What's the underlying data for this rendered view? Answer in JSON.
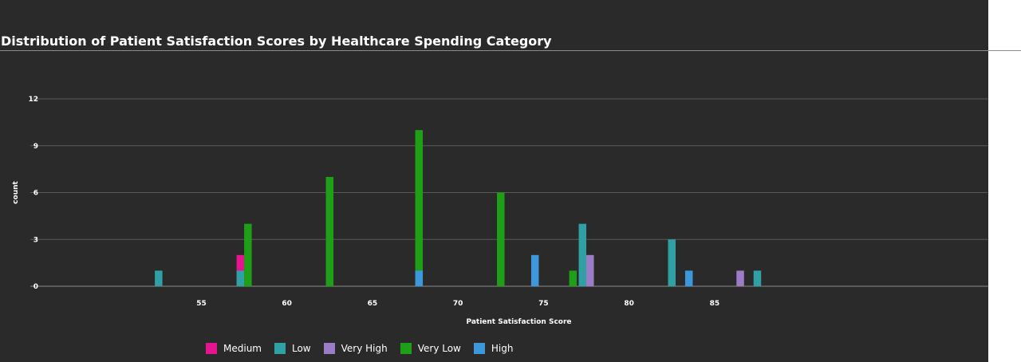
{
  "chart_data": {
    "type": "bar",
    "title": "Distribution of Patient Satisfaction Scores by Healthcare Spending Category",
    "xlabel": "Patient Satisfaction Score",
    "ylabel": "count",
    "xlim": [
      45,
      101
    ],
    "ylim": [
      0,
      12
    ],
    "x_ticks": [
      55,
      60,
      65,
      70,
      75,
      80,
      85
    ],
    "y_ticks": [
      0,
      3,
      6,
      9,
      12
    ],
    "grid": true,
    "legend_position": "bottom",
    "series": [
      {
        "name": "Medium",
        "color": "#e5158f",
        "points": [
          {
            "x": 57.5,
            "y": 2
          }
        ]
      },
      {
        "name": "Low",
        "color": "#30a0a5",
        "points": [
          {
            "x": 52.5,
            "y": 1
          },
          {
            "x": 57.5,
            "y": 1
          },
          {
            "x": 77.5,
            "y": 4
          },
          {
            "x": 82.5,
            "y": 3
          },
          {
            "x": 87.5,
            "y": 1
          }
        ]
      },
      {
        "name": "Very High",
        "color": "#9d7cc7",
        "points": [
          {
            "x": 77.5,
            "y": 2
          },
          {
            "x": 86.5,
            "y": 1
          }
        ]
      },
      {
        "name": "Very Low",
        "color": "#1f9f17",
        "points": [
          {
            "x": 57.5,
            "y": 4
          },
          {
            "x": 62.5,
            "y": 7
          },
          {
            "x": 67.5,
            "y": 10
          },
          {
            "x": 72.5,
            "y": 6
          },
          {
            "x": 76.5,
            "y": 1
          }
        ]
      },
      {
        "name": "High",
        "color": "#3d97db",
        "points": [
          {
            "x": 67.5,
            "y": 1
          },
          {
            "x": 74.5,
            "y": 2
          },
          {
            "x": 83.5,
            "y": 1
          }
        ]
      }
    ]
  }
}
